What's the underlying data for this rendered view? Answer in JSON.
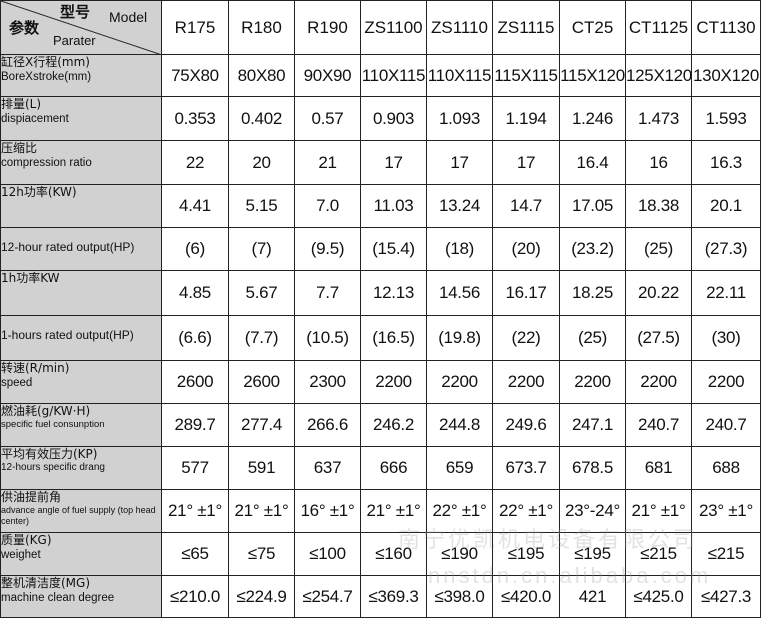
{
  "header": {
    "model_cn": "型号",
    "model_en": "Model",
    "param_cn": "参数",
    "param_en": "Parater"
  },
  "models": [
    "R175",
    "R180",
    "R190",
    "ZS1100",
    "ZS1110",
    "ZS1115",
    "CT25",
    "CT1125",
    "CT1130"
  ],
  "rows": [
    {
      "cn": "缸径X行程(mm)",
      "en": "BoreXstroke(mm)",
      "values": [
        "75X80",
        "80X80",
        "90X90",
        "110X115",
        "110X115",
        "115X115",
        "115X120",
        "125X120",
        "130X120"
      ]
    },
    {
      "cn": "排量(L)",
      "en": "dispiacement",
      "values": [
        "0.353",
        "0.402",
        "0.57",
        "0.903",
        "1.093",
        "1.194",
        "1.246",
        "1.473",
        "1.593"
      ]
    },
    {
      "cn": "压缩比",
      "en": "compression ratio",
      "values": [
        "22",
        "20",
        "21",
        "17",
        "17",
        "17",
        "16.4",
        "16",
        "16.3"
      ]
    },
    {
      "cn": "12h功率(KW)",
      "en": "",
      "values": [
        "4.41",
        "5.15",
        "7.0",
        "11.03",
        "13.24",
        "14.7",
        "17.05",
        "18.38",
        "20.1"
      ]
    },
    {
      "cn": "",
      "en": "12-hour rated output(HP)",
      "values": [
        "(6)",
        "(7)",
        "(9.5)",
        "(15.4)",
        "(18)",
        "(20)",
        "(23.2)",
        "(25)",
        "(27.3)"
      ]
    },
    {
      "cn": "1h功率KW",
      "en": "",
      "values": [
        "4.85",
        "5.67",
        "7.7",
        "12.13",
        "14.56",
        "16.17",
        "18.25",
        "20.22",
        "22.11"
      ]
    },
    {
      "cn": "",
      "en": "1-hours rated output(HP)",
      "values": [
        "(6.6)",
        "(7.7)",
        "(10.5)",
        "(16.5)",
        "(19.8)",
        "(22)",
        "(25)",
        "(27.5)",
        "(30)"
      ]
    },
    {
      "cn": "转速(R/min)",
      "en": "speed",
      "values": [
        "2600",
        "2600",
        "2300",
        "2200",
        "2200",
        "2200",
        "2200",
        "2200",
        "2200"
      ]
    },
    {
      "cn": "燃油耗(g/KW·H)",
      "en": "specific fuel consunption",
      "values": [
        "289.7",
        "277.4",
        "266.6",
        "246.2",
        "244.8",
        "249.6",
        "247.1",
        "240.7",
        "240.7"
      ]
    },
    {
      "cn": "平均有效压力(KP)",
      "en": "12-hours specific drang",
      "values": [
        "577",
        "591",
        "637",
        "666",
        "659",
        "673.7",
        "678.5",
        "681",
        "688"
      ]
    },
    {
      "cn": "供油提前角",
      "en": "advance angle of fuel supply (top head center)",
      "values": [
        "21° ±1°",
        "21° ±1°",
        "16° ±1°",
        "21° ±1°",
        "22° ±1°",
        "22° ±1°",
        "23°-24°",
        "21° ±1°",
        "23° ±1°"
      ]
    },
    {
      "cn": "质量(KG)",
      "en": "weighet",
      "values": [
        "≤65",
        "≤75",
        "≤100",
        "≤160",
        "≤190",
        "≤195",
        "≤195",
        "≤215",
        "≤215"
      ]
    },
    {
      "cn": "整机清洁度(MG)",
      "en": "machine clean degree",
      "values": [
        "≤210.0",
        "≤224.9",
        "≤254.7",
        "≤369.3",
        "≤398.0",
        "≤420.0",
        "421",
        "≤425.0",
        "≤427.3"
      ]
    }
  ],
  "watermark": {
    "line1": "南宁优凯机电设备有限公司",
    "line2": "nnstdn.cn.alibaba.com"
  }
}
